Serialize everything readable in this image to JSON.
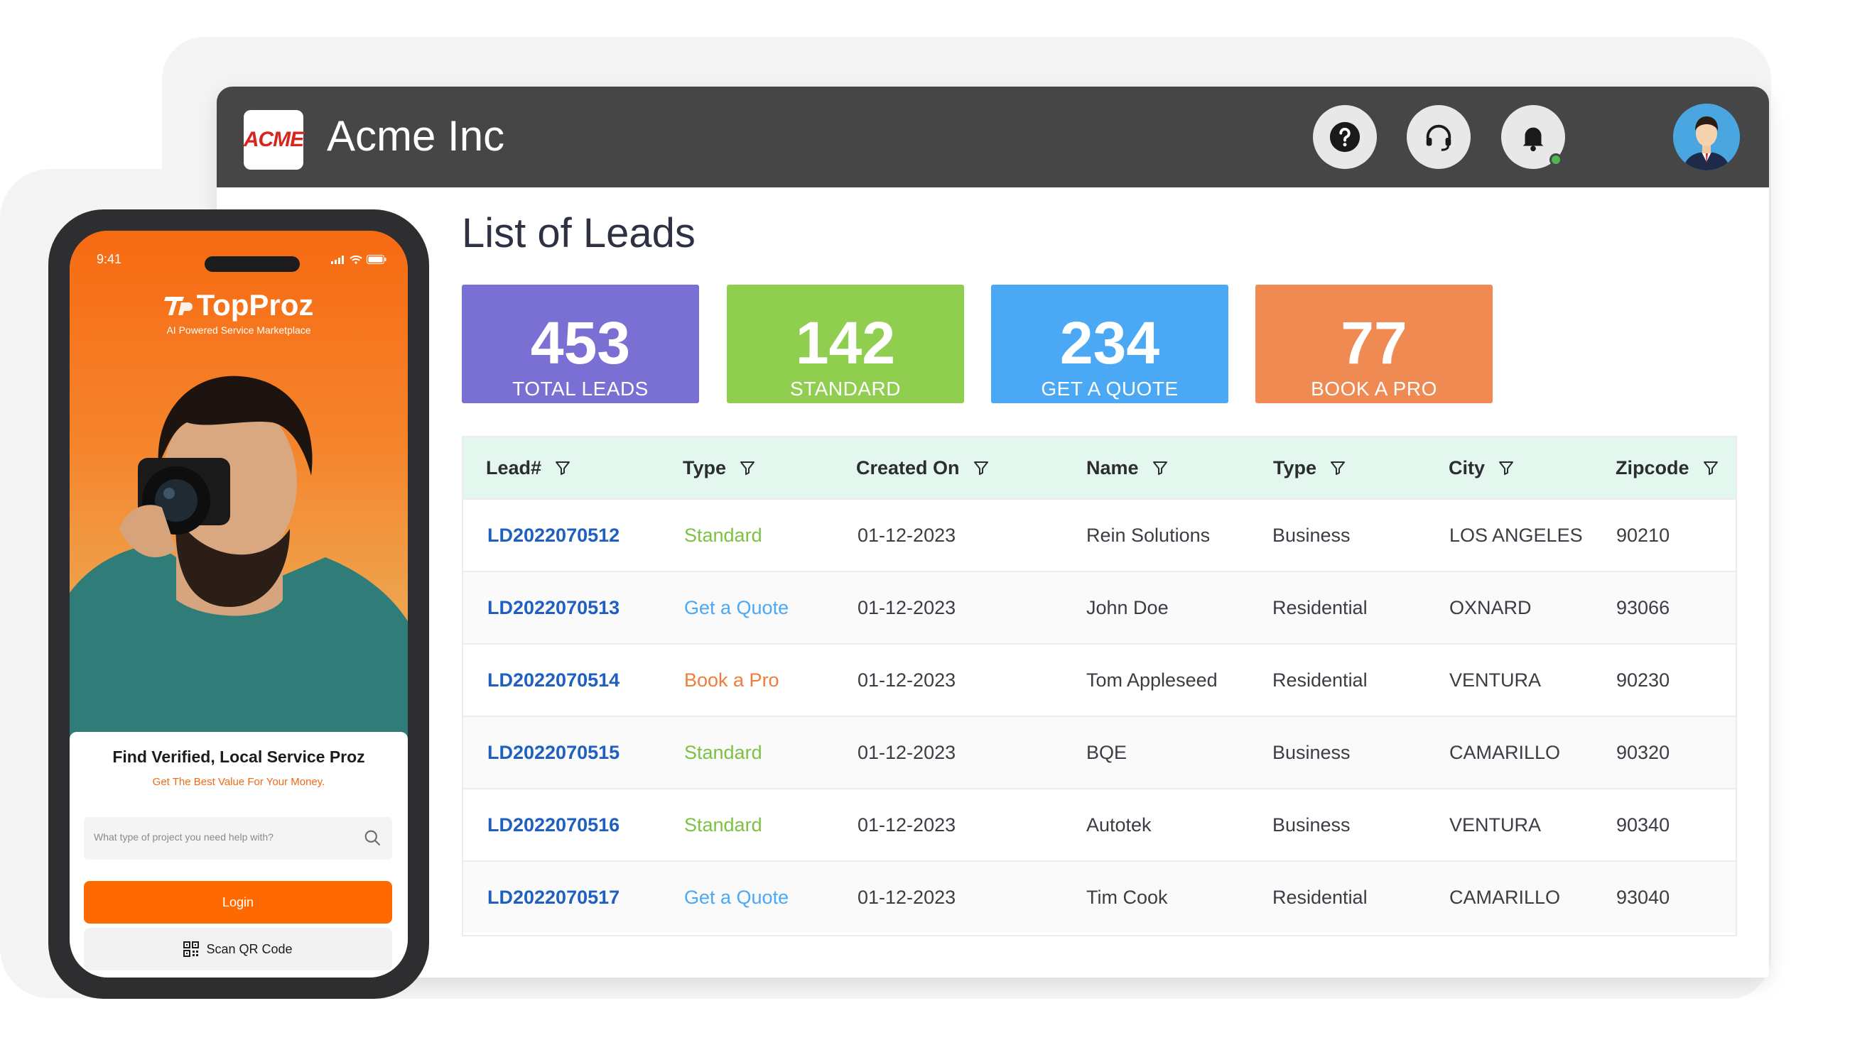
{
  "app": {
    "title": "Acme Inc",
    "logo_text": "ACME"
  },
  "header": {
    "icons": [
      "help-icon",
      "headset-icon",
      "bell-icon",
      "avatar"
    ]
  },
  "page": {
    "title": "List of Leads"
  },
  "stats": [
    {
      "value": "453",
      "label": "TOTAL LEADS",
      "color": "#7a6fd3"
    },
    {
      "value": "142",
      "label": "STANDARD",
      "color": "#8fce4e"
    },
    {
      "value": "234",
      "label": "GET A QUOTE",
      "color": "#4ba8f5"
    },
    {
      "value": "77",
      "label": "BOOK A PRO",
      "color": "#ef8a53"
    }
  ],
  "table": {
    "columns": [
      "Lead#",
      "Type",
      "Created On",
      "Name",
      "Type",
      "City",
      "Zipcode"
    ],
    "rows": [
      {
        "lead": "LD2022070512",
        "type": "Standard",
        "created": "01-12-2023",
        "name": "Rein Solutions",
        "category": "Business",
        "city": "LOS ANGELES",
        "zip": "90210"
      },
      {
        "lead": "LD2022070513",
        "type": "Get a Quote",
        "created": "01-12-2023",
        "name": "John Doe",
        "category": "Residential",
        "city": "OXNARD",
        "zip": "93066"
      },
      {
        "lead": "LD2022070514",
        "type": "Book a Pro",
        "created": "01-12-2023",
        "name": "Tom Appleseed",
        "category": "Residential",
        "city": "VENTURA",
        "zip": "90230"
      },
      {
        "lead": "LD2022070515",
        "type": "Standard",
        "created": "01-12-2023",
        "name": "BQE",
        "category": "Business",
        "city": "CAMARILLO",
        "zip": "90320"
      },
      {
        "lead": "LD2022070516",
        "type": "Standard",
        "created": "01-12-2023",
        "name": "Autotek",
        "category": "Business",
        "city": "VENTURA",
        "zip": "90340"
      },
      {
        "lead": "LD2022070517",
        "type": "Get a Quote",
        "created": "01-12-2023",
        "name": "Tim Cook",
        "category": "Residential",
        "city": "CAMARILLO",
        "zip": "93040"
      }
    ],
    "type_colors": {
      "Standard": "#7cc242",
      "Get a Quote": "#4ba8f5",
      "Book a Pro": "#ef7d3c"
    }
  },
  "phone": {
    "time": "9:41",
    "brand": "TopProz",
    "tagline": "AI Powered Service Marketplace",
    "card_title": "Find Verified, Local Service Proz",
    "card_subtitle": "Get The Best Value For Your Money.",
    "search_placeholder": "What type of project you need help with?",
    "login_label": "Login",
    "qr_label": "Scan QR Code"
  }
}
